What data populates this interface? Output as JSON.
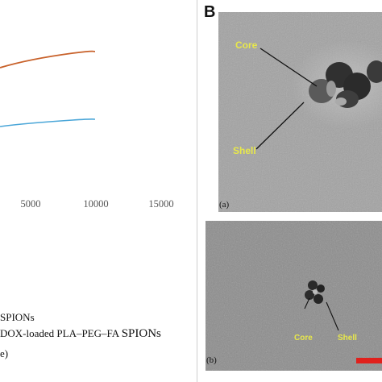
{
  "left_panel": {
    "x_ticks": [
      "5000",
      "10000",
      "15000"
    ],
    "legend": {
      "line1": "SPIONs",
      "line2_prefix": "DOX-loaded PLA–PEG–FA ",
      "line2_suffix": "SPIONs",
      "line3": "e)"
    },
    "colors": {
      "orange_curve": "#c8612a",
      "blue_curve": "#4aa6d8"
    }
  },
  "right_panel": {
    "panel_letter": "B",
    "image_a": {
      "sublabel": "(a)",
      "core_label": "Core",
      "shell_label": "Shell"
    },
    "image_b": {
      "sublabel": "(b)",
      "core_label": "Core",
      "shell_label": "Shell"
    },
    "colors": {
      "annotation": "#e8e84a",
      "scale_bar": "#e0201c"
    }
  }
}
